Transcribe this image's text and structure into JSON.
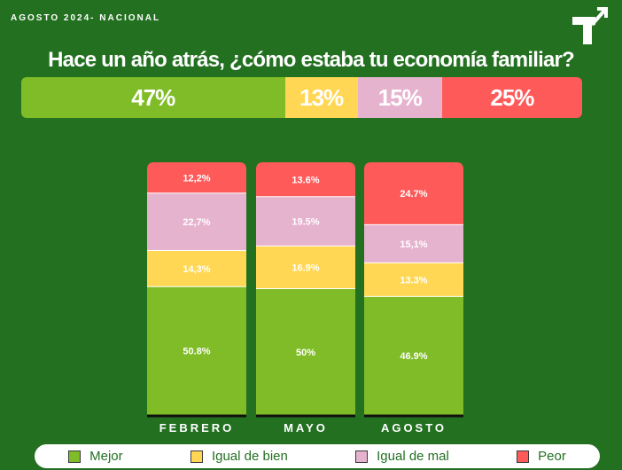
{
  "header": {
    "tag": "AGOSTO 2024- NACIONAL"
  },
  "title": "Hace un año atrás, ¿cómo estaba tu economía familiar?",
  "summary": [
    {
      "label": "47%",
      "value": 47,
      "color": "#7fbc27",
      "text_color": "#ffffff"
    },
    {
      "label": "13%",
      "value": 13,
      "color": "#ffd754",
      "text_color": "#ffffff"
    },
    {
      "label": "15%",
      "value": 15,
      "color": "#e6b3cf",
      "text_color": "#ffffff"
    },
    {
      "label": "25%",
      "value": 25,
      "color": "#ff5a5a",
      "text_color": "#ffffff"
    }
  ],
  "chart_data": {
    "type": "bar",
    "stacked": true,
    "categories": [
      "FEBRERO",
      "MAYO",
      "AGOSTO"
    ],
    "series": [
      {
        "name": "Mejor",
        "color": "#7fbc27",
        "values": [
          50.8,
          50,
          46.9
        ],
        "labels": [
          "50.8%",
          "50%",
          "46.9%"
        ]
      },
      {
        "name": "Igual de bien",
        "color": "#ffd754",
        "values": [
          14.3,
          16.9,
          13.3
        ],
        "labels": [
          "14,3%",
          "16.9%",
          "13.3%"
        ]
      },
      {
        "name": "Igual de mal",
        "color": "#e6b3cf",
        "values": [
          22.7,
          19.5,
          15.1
        ],
        "labels": [
          "22,7%",
          "19.5%",
          "15,1%"
        ]
      },
      {
        "name": "Peor",
        "color": "#ff5a5a",
        "values": [
          12.2,
          13.6,
          24.7
        ],
        "labels": [
          "12,2%",
          "13.6%",
          "24.7%"
        ]
      }
    ],
    "legend_position": "bottom",
    "grid": false
  },
  "legend": {
    "items": [
      {
        "label": "Mejor",
        "color": "#7fbc27"
      },
      {
        "label": "Igual de bien",
        "color": "#ffd754"
      },
      {
        "label": "Igual de mal",
        "color": "#e6b3cf"
      },
      {
        "label": "Peor",
        "color": "#ff5a5a"
      }
    ]
  },
  "colors": {
    "background": "#237021",
    "legend_text": "#237021"
  }
}
